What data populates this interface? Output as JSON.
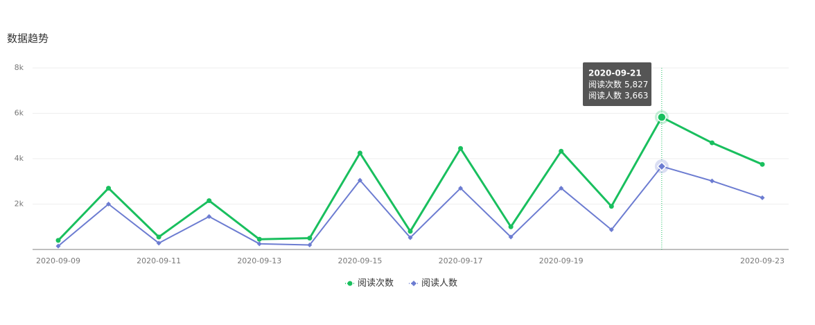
{
  "chart_data": {
    "type": "line",
    "title": "数据趋势",
    "categories": [
      "2020-09-09",
      null,
      "2020-09-11",
      null,
      "2020-09-13",
      null,
      "2020-09-15",
      null,
      "2020-09-17",
      null,
      "2020-09-19",
      null,
      null,
      null,
      "2020-09-23"
    ],
    "series": [
      {
        "name": "阅读次数",
        "color": "#19bf5e",
        "marker": "circle",
        "values": [
          400,
          2700,
          550,
          2150,
          450,
          500,
          4250,
          800,
          4450,
          1000,
          4330,
          1900,
          5827,
          4700,
          3750
        ]
      },
      {
        "name": "阅读人数",
        "color": "#6c7cd1",
        "marker": "diamond",
        "values": [
          150,
          2000,
          280,
          1450,
          250,
          200,
          3050,
          520,
          2700,
          550,
          2700,
          870,
          3663,
          3020,
          2280
        ]
      }
    ],
    "ylim": [
      0,
      8000
    ],
    "yticks": [
      {
        "value": 2000,
        "label": "2k"
      },
      {
        "value": 4000,
        "label": "4k"
      },
      {
        "value": 6000,
        "label": "6k"
      },
      {
        "value": 8000,
        "label": "8k"
      }
    ],
    "grid": true,
    "legend": "bottom",
    "tooltip": {
      "title": "2020-09-21",
      "value_labels": [
        "5,827",
        "3,663"
      ]
    }
  }
}
